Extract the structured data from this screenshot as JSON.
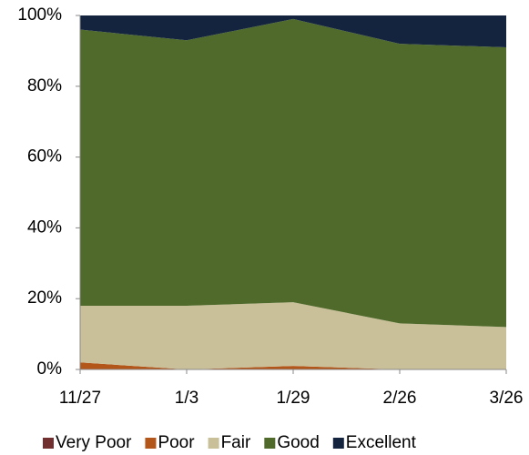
{
  "chart_data": {
    "type": "stacked_area",
    "categories": [
      "11/27",
      "1/3",
      "1/29",
      "2/26",
      "3/26"
    ],
    "series": [
      {
        "name": "Very Poor",
        "color": "#722f2f",
        "values": [
          0,
          0,
          0,
          0,
          0
        ]
      },
      {
        "name": "Poor",
        "color": "#b3561a",
        "values": [
          2,
          0,
          1,
          0,
          0
        ]
      },
      {
        "name": "Fair",
        "color": "#c9bf98",
        "values": [
          16,
          18,
          18,
          13,
          12
        ]
      },
      {
        "name": "Good",
        "color": "#4f6a2b",
        "values": [
          78,
          75,
          80,
          79,
          79
        ]
      },
      {
        "name": "Excellent",
        "color": "#14243f",
        "values": [
          4,
          7,
          1,
          8,
          9
        ]
      }
    ],
    "ylim": [
      0,
      100
    ],
    "yticks": [
      {
        "value": 0,
        "label": "0%"
      },
      {
        "value": 20,
        "label": "20%"
      },
      {
        "value": 40,
        "label": "40%"
      },
      {
        "value": 60,
        "label": "60%"
      },
      {
        "value": 80,
        "label": "80%"
      },
      {
        "value": 100,
        "label": "100%"
      }
    ],
    "grid": false,
    "legend": "bottom"
  }
}
